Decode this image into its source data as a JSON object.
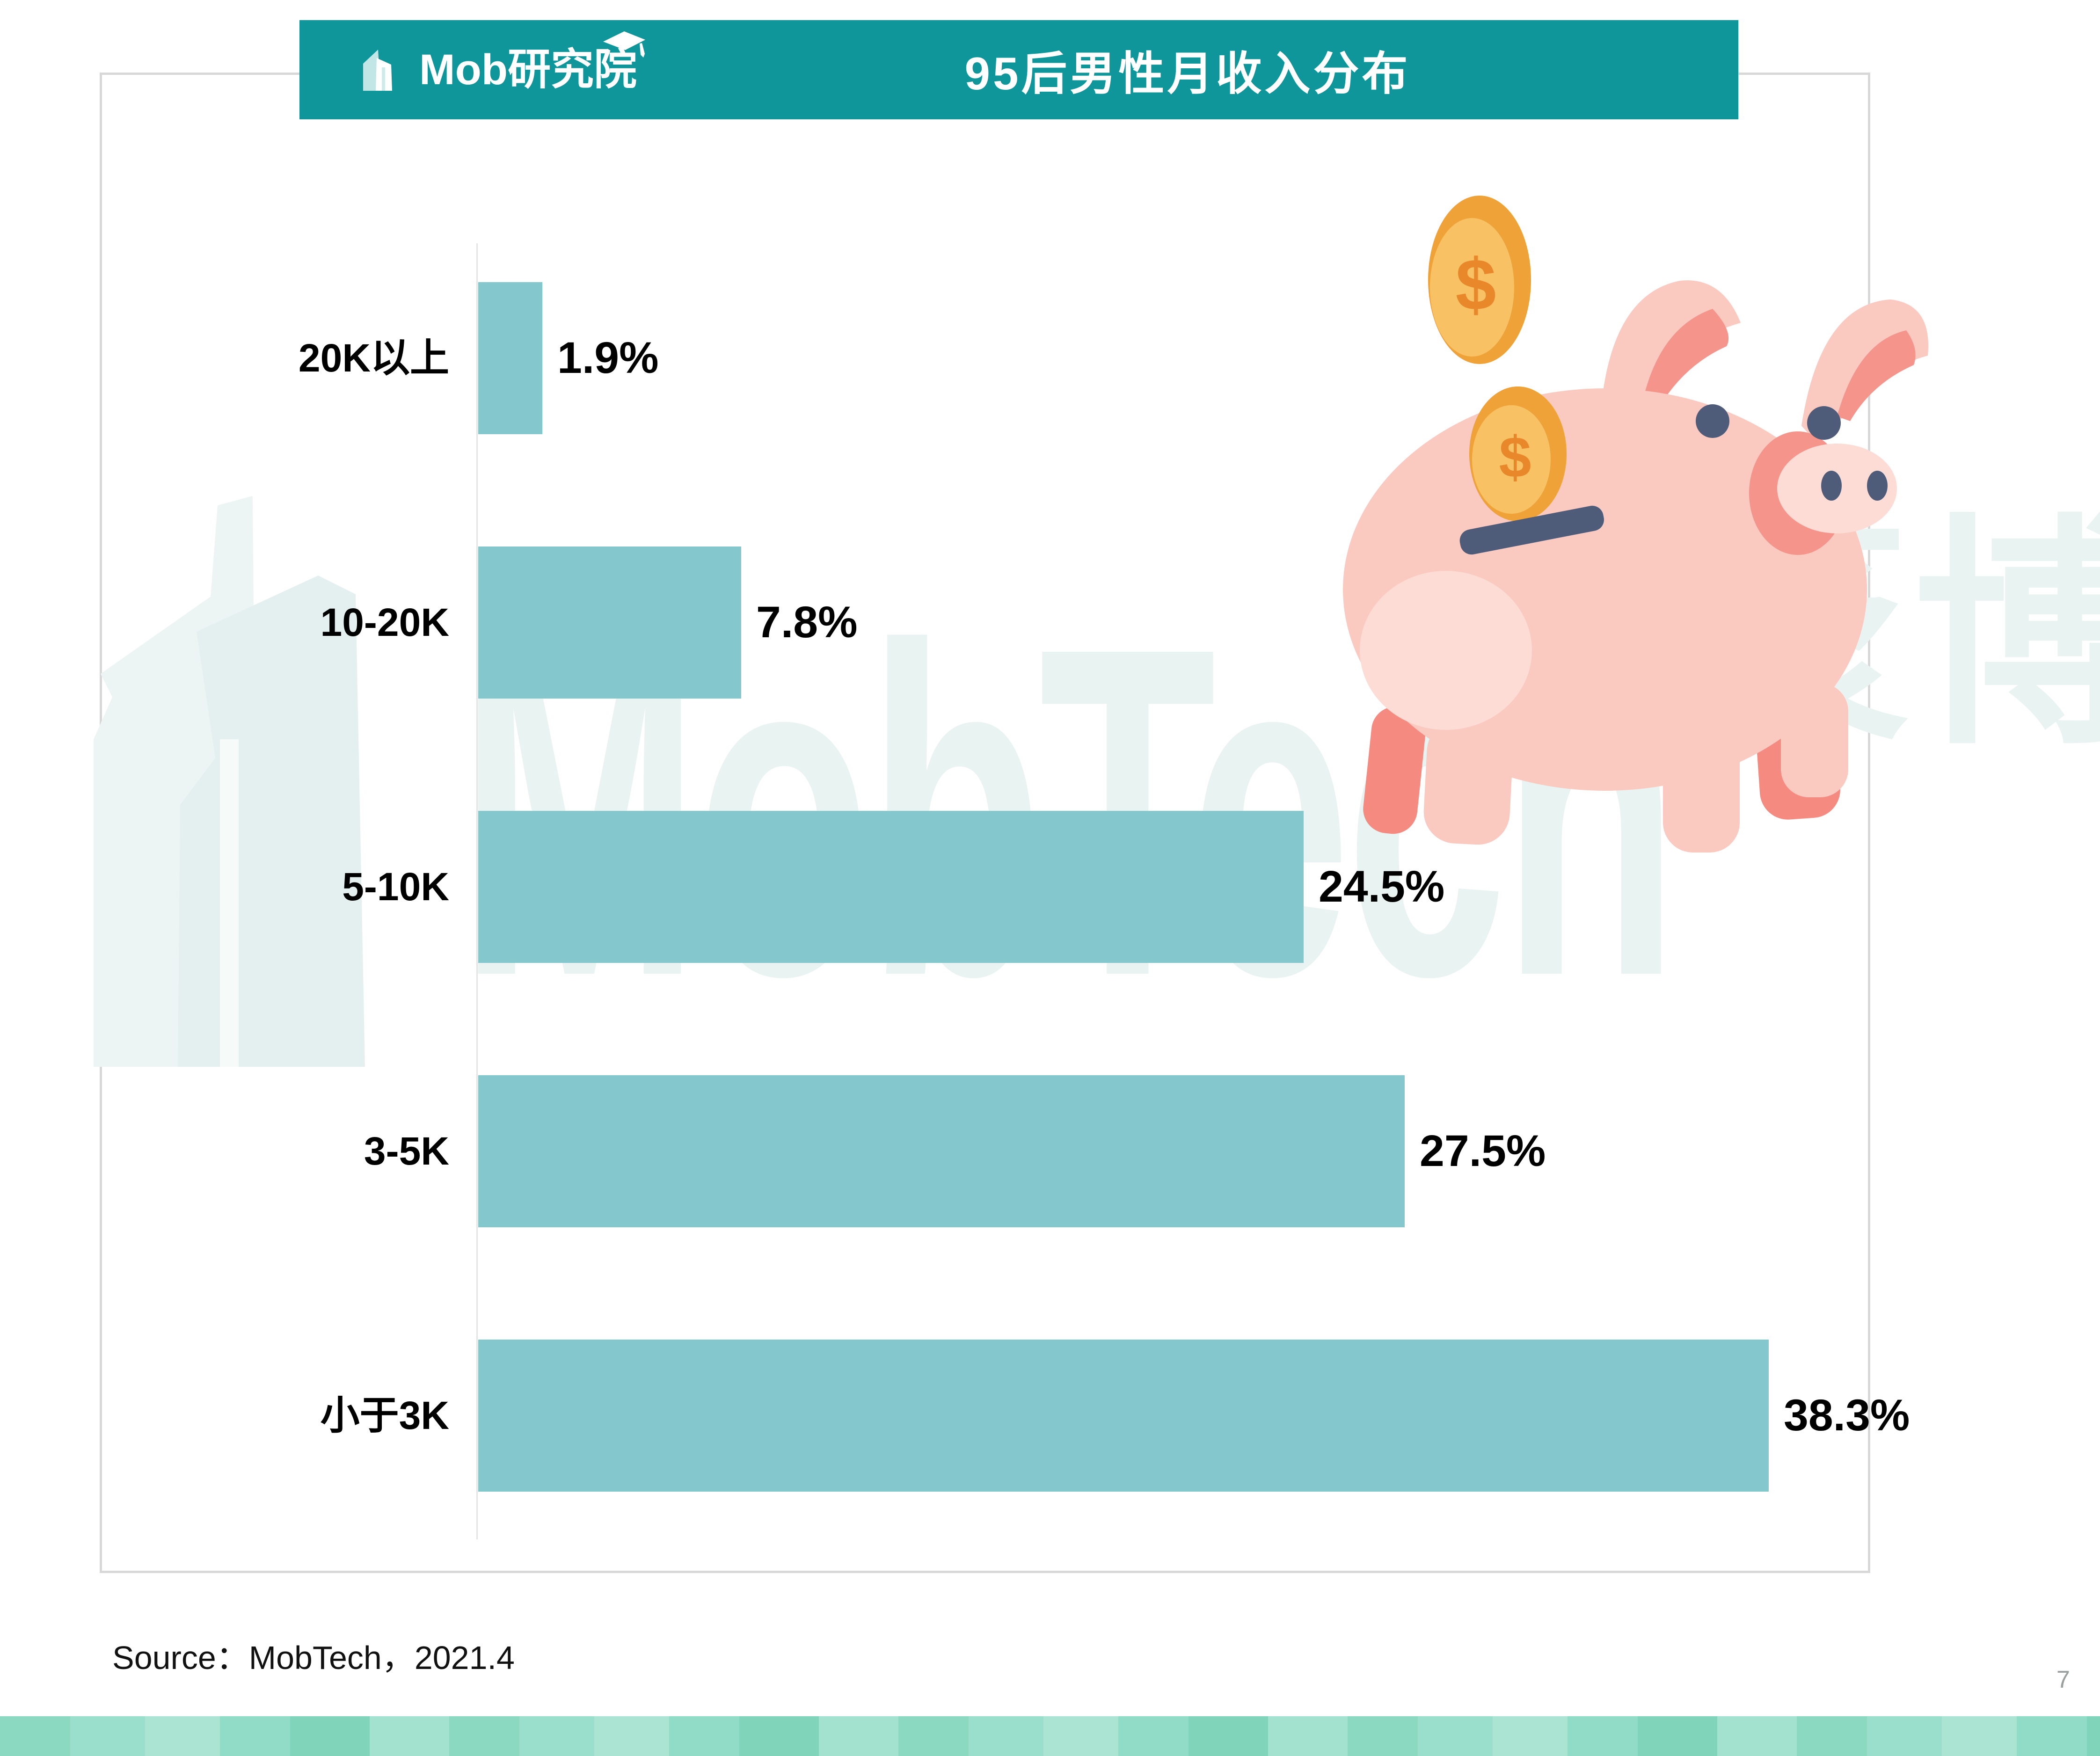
{
  "header": {
    "brand": "Mob研究院",
    "title": "95后男性月收入分布",
    "bg_color": "#0F969B"
  },
  "chart_data": {
    "type": "bar",
    "orientation": "horizontal",
    "title": "95后男性月收入分布",
    "categories": [
      "20K以上",
      "10-20K",
      "5-10K",
      "3-5K",
      "小于3K"
    ],
    "values": [
      1.9,
      7.8,
      24.5,
      27.5,
      38.3
    ],
    "value_labels": [
      "1.9%",
      "7.8%",
      "24.5%",
      "27.5%",
      "38.3%"
    ],
    "unit": "%",
    "xlim": [
      0,
      40
    ],
    "grid": false,
    "legend": "none",
    "bar_color": "#84C8CE",
    "axis_color": "#E4E4E4",
    "category_order": "top-to-bottom"
  },
  "watermark": {
    "latin": "MobTech",
    "cjk": "袤博"
  },
  "illustration": {
    "name": "piggy-bank-with-coins",
    "colors": {
      "pig_body": "#FAC9C0",
      "pig_shade": "#F5948A",
      "pig_light": "#FCDCD4",
      "pig_leg": "#F58B80",
      "slot_eyes": "#4E5C7A",
      "coin_rim": "#EFA238",
      "coin_face": "#F8C264",
      "coin_symbol": "#E8882B"
    },
    "coin_symbol_text": "$"
  },
  "footer": {
    "source": "Source：MobTech，2021.4",
    "page": "7"
  }
}
